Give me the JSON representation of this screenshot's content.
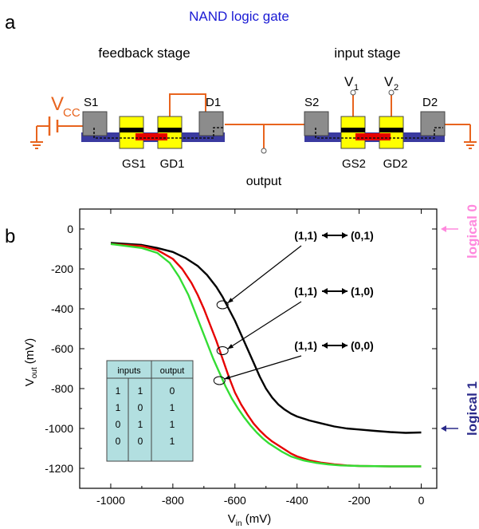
{
  "panel_a": {
    "label": "a",
    "title": "NAND logic gate",
    "title_color": "#1a1ad4",
    "feedback_stage": "feedback stage",
    "input_stage": "input stage",
    "vcc_main": "V",
    "vcc_sub": "CC",
    "v1_main": "V",
    "v1_sub": "1",
    "v2_main": "V",
    "v2_sub": "2",
    "s1": "S1",
    "d1": "D1",
    "s2": "S2",
    "d2": "D2",
    "gs1": "GS1",
    "gd1": "GD1",
    "gs2": "GS2",
    "gd2": "GD2",
    "output": "output",
    "colors": {
      "wire": "#e8641e",
      "contact": "#8c8c8c",
      "gate": "#ffff00",
      "channel": "#3a3aa0",
      "channel_red": "#e60000"
    }
  },
  "chart_data": {
    "type": "line",
    "panel_label": "b",
    "xlabel_main": "V",
    "xlabel_sub": "in",
    "xlabel_unit": " (mV)",
    "ylabel_main": "V",
    "ylabel_sub": "out",
    "ylabel_unit": " (mV)",
    "xlim": [
      -1100,
      50
    ],
    "ylim": [
      -1300,
      100
    ],
    "xticks": [
      -1000,
      -800,
      -600,
      -400,
      -200,
      0
    ],
    "yticks": [
      0,
      -200,
      -400,
      -600,
      -800,
      -1000,
      -1200
    ],
    "series": [
      {
        "color": "#000000",
        "x": [
          -1000,
          -900,
          -850,
          -800,
          -760,
          -720,
          -690,
          -660,
          -640,
          -620,
          -600,
          -580,
          -560,
          -540,
          -520,
          -500,
          -480,
          -460,
          -440,
          -420,
          -400,
          -360,
          -320,
          -280,
          -240,
          -200,
          -150,
          -100,
          -50,
          0
        ],
        "y": [
          -70,
          -80,
          -95,
          -115,
          -145,
          -185,
          -230,
          -290,
          -340,
          -400,
          -460,
          -530,
          -600,
          -670,
          -740,
          -800,
          -845,
          -880,
          -905,
          -925,
          -940,
          -960,
          -975,
          -990,
          -1000,
          -1005,
          -1012,
          -1018,
          -1022,
          -1020
        ]
      },
      {
        "color": "#e60000",
        "x": [
          -1000,
          -900,
          -850,
          -800,
          -770,
          -740,
          -720,
          -700,
          -680,
          -660,
          -640,
          -620,
          -600,
          -580,
          -560,
          -540,
          -520,
          -500,
          -480,
          -460,
          -440,
          -420,
          -400,
          -360,
          -320,
          -280,
          -240,
          -200,
          -100,
          0
        ],
        "y": [
          -75,
          -85,
          -105,
          -150,
          -200,
          -270,
          -330,
          -400,
          -480,
          -560,
          -650,
          -740,
          -820,
          -880,
          -930,
          -975,
          -1010,
          -1040,
          -1065,
          -1085,
          -1105,
          -1125,
          -1140,
          -1160,
          -1172,
          -1180,
          -1185,
          -1188,
          -1190,
          -1190
        ]
      },
      {
        "color": "#33dd33",
        "x": [
          -1000,
          -900,
          -850,
          -810,
          -780,
          -750,
          -730,
          -710,
          -690,
          -670,
          -650,
          -630,
          -610,
          -590,
          -570,
          -550,
          -530,
          -510,
          -490,
          -470,
          -450,
          -420,
          -380,
          -340,
          -300,
          -260,
          -200,
          -100,
          0
        ],
        "y": [
          -75,
          -95,
          -120,
          -170,
          -240,
          -330,
          -410,
          -490,
          -570,
          -650,
          -720,
          -790,
          -850,
          -900,
          -945,
          -985,
          -1020,
          -1050,
          -1075,
          -1095,
          -1115,
          -1140,
          -1160,
          -1172,
          -1180,
          -1185,
          -1188,
          -1190,
          -1190
        ]
      }
    ],
    "annotations": [
      {
        "label_left": "(1,1)",
        "label_right": "(0,1)",
        "at_x": -640,
        "at_y": -380
      },
      {
        "label_left": "(1,1)",
        "label_right": "(1,0)",
        "at_x": -640,
        "at_y": -610
      },
      {
        "label_left": "(1,1)",
        "label_right": "(0,0)",
        "at_x": -650,
        "at_y": -760
      }
    ],
    "logical0": {
      "text": "logical 0",
      "color": "#ff88dd",
      "y": 0
    },
    "logical1": {
      "text": "logical 1",
      "color": "#2a2a8a",
      "y": -1000
    },
    "truth_table": {
      "bg": "#b2dfe0",
      "header_inputs": "inputs",
      "header_output": "output",
      "rows": [
        [
          "1",
          "1",
          "0"
        ],
        [
          "1",
          "0",
          "1"
        ],
        [
          "0",
          "1",
          "1"
        ],
        [
          "0",
          "0",
          "1"
        ]
      ]
    }
  }
}
